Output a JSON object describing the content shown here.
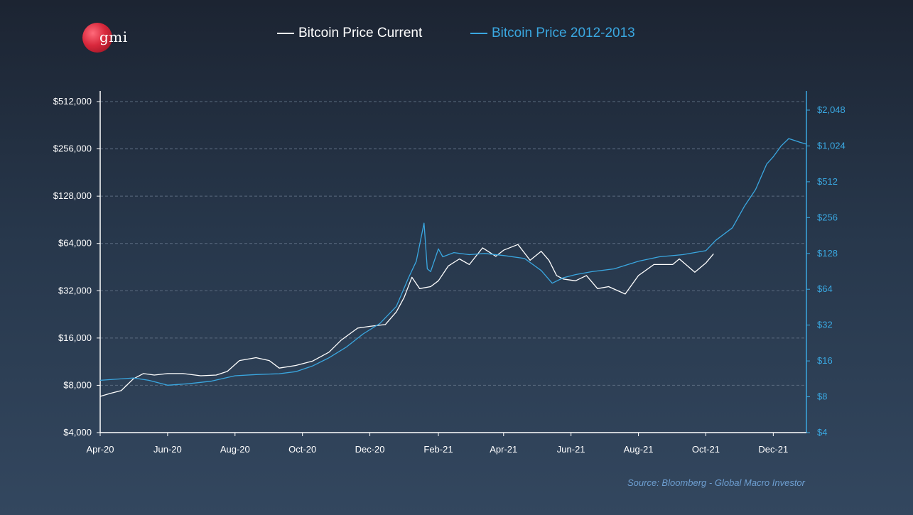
{
  "logo": {
    "text": "gmi"
  },
  "legend": {
    "current_label": "Bitcoin Price Current",
    "historical_label": "Bitcoin Price 2012-2013"
  },
  "source": "Source: Bloomberg - Global Macro Investor",
  "colors": {
    "current": "#ffffff",
    "historical": "#3aa7e0",
    "axis_left": "#ffffff",
    "axis_right": "#3aa7e0"
  },
  "chart_data": {
    "type": "line",
    "x_ticks": [
      "Apr-20",
      "Jun-20",
      "Aug-20",
      "Oct-20",
      "Dec-20",
      "Feb-21",
      "Apr-21",
      "Jun-21",
      "Aug-21",
      "Oct-21",
      "Dec-21"
    ],
    "x_range": [
      "2020-04-01",
      "2021-12-31"
    ],
    "y_left": {
      "scale": "log2",
      "ylim": [
        4000,
        512000
      ],
      "tick_labels": [
        "$4,000",
        "$8,000",
        "$16,000",
        "$32,000",
        "$64,000",
        "$128,000",
        "$256,000",
        "$512,000"
      ],
      "tick_values": [
        4000,
        8000,
        16000,
        32000,
        64000,
        128000,
        256000,
        512000
      ]
    },
    "y_right": {
      "scale": "log2",
      "ylim": [
        4,
        2048
      ],
      "tick_labels": [
        "$4",
        "$8",
        "$16",
        "$32",
        "$64",
        "$128",
        "$256",
        "$512",
        "$1,024",
        "$2,048"
      ],
      "tick_values": [
        4,
        8,
        16,
        32,
        64,
        128,
        256,
        512,
        1024,
        2048
      ]
    },
    "grid": "horizontal dashed",
    "series": [
      {
        "name": "Bitcoin Price Current",
        "axis": "left",
        "x": [
          "2020-04-01",
          "2020-04-10",
          "2020-04-20",
          "2020-05-01",
          "2020-05-10",
          "2020-05-20",
          "2020-06-01",
          "2020-06-15",
          "2020-07-01",
          "2020-07-15",
          "2020-07-25",
          "2020-08-05",
          "2020-08-20",
          "2020-09-01",
          "2020-09-10",
          "2020-09-25",
          "2020-10-10",
          "2020-10-25",
          "2020-11-05",
          "2020-11-20",
          "2020-12-01",
          "2020-12-15",
          "2020-12-25",
          "2021-01-01",
          "2021-01-08",
          "2021-01-15",
          "2021-01-25",
          "2021-02-01",
          "2021-02-10",
          "2021-02-20",
          "2021-03-01",
          "2021-03-13",
          "2021-03-25",
          "2021-04-01",
          "2021-04-14",
          "2021-04-25",
          "2021-05-05",
          "2021-05-12",
          "2021-05-19",
          "2021-05-25",
          "2021-06-05",
          "2021-06-15",
          "2021-06-25",
          "2021-07-05",
          "2021-07-20",
          "2021-08-01",
          "2021-08-15",
          "2021-09-01",
          "2021-09-07",
          "2021-09-21",
          "2021-10-01",
          "2021-10-08"
        ],
        "values": [
          6800,
          7100,
          7400,
          8800,
          9500,
          9300,
          9500,
          9500,
          9200,
          9300,
          9800,
          11500,
          12000,
          11500,
          10300,
          10700,
          11400,
          13000,
          15500,
          18500,
          19000,
          19500,
          23500,
          29000,
          39000,
          33000,
          34000,
          37000,
          46000,
          51000,
          47000,
          60000,
          53000,
          58000,
          63000,
          50000,
          57000,
          50000,
          40000,
          38000,
          37000,
          40000,
          33000,
          34000,
          30500,
          40000,
          47000,
          47000,
          51000,
          42000,
          48000,
          55000
        ]
      },
      {
        "name": "Bitcoin Price 2012-2013",
        "axis": "right",
        "x": [
          "2020-04-01",
          "2020-05-01",
          "2020-05-15",
          "2020-06-01",
          "2020-06-20",
          "2020-07-10",
          "2020-08-01",
          "2020-08-20",
          "2020-09-10",
          "2020-09-25",
          "2020-10-10",
          "2020-10-25",
          "2020-11-10",
          "2020-11-25",
          "2020-12-10",
          "2020-12-25",
          "2021-01-05",
          "2021-01-12",
          "2021-01-19",
          "2021-01-22",
          "2021-01-25",
          "2021-02-01",
          "2021-02-05",
          "2021-02-15",
          "2021-03-01",
          "2021-03-15",
          "2021-04-01",
          "2021-04-20",
          "2021-05-05",
          "2021-05-15",
          "2021-05-25",
          "2021-06-05",
          "2021-06-20",
          "2021-07-10",
          "2021-08-01",
          "2021-08-20",
          "2021-09-10",
          "2021-10-01",
          "2021-10-10",
          "2021-10-25",
          "2021-11-05",
          "2021-11-15",
          "2021-11-25",
          "2021-12-01",
          "2021-12-08",
          "2021-12-15",
          "2021-12-20",
          "2021-12-25",
          "2021-12-31"
        ],
        "values": [
          11,
          11.5,
          11,
          10,
          10.3,
          10.8,
          12,
          12.3,
          12.5,
          13,
          14.5,
          17,
          21,
          27,
          33,
          46,
          80,
          110,
          230,
          95,
          90,
          140,
          120,
          130,
          125,
          128,
          123,
          116,
          92,
          72,
          80,
          85,
          90,
          95,
          110,
          120,
          125,
          135,
          165,
          210,
          320,
          440,
          720,
          830,
          1020,
          1180,
          1140,
          1100,
          1060
        ]
      }
    ]
  }
}
